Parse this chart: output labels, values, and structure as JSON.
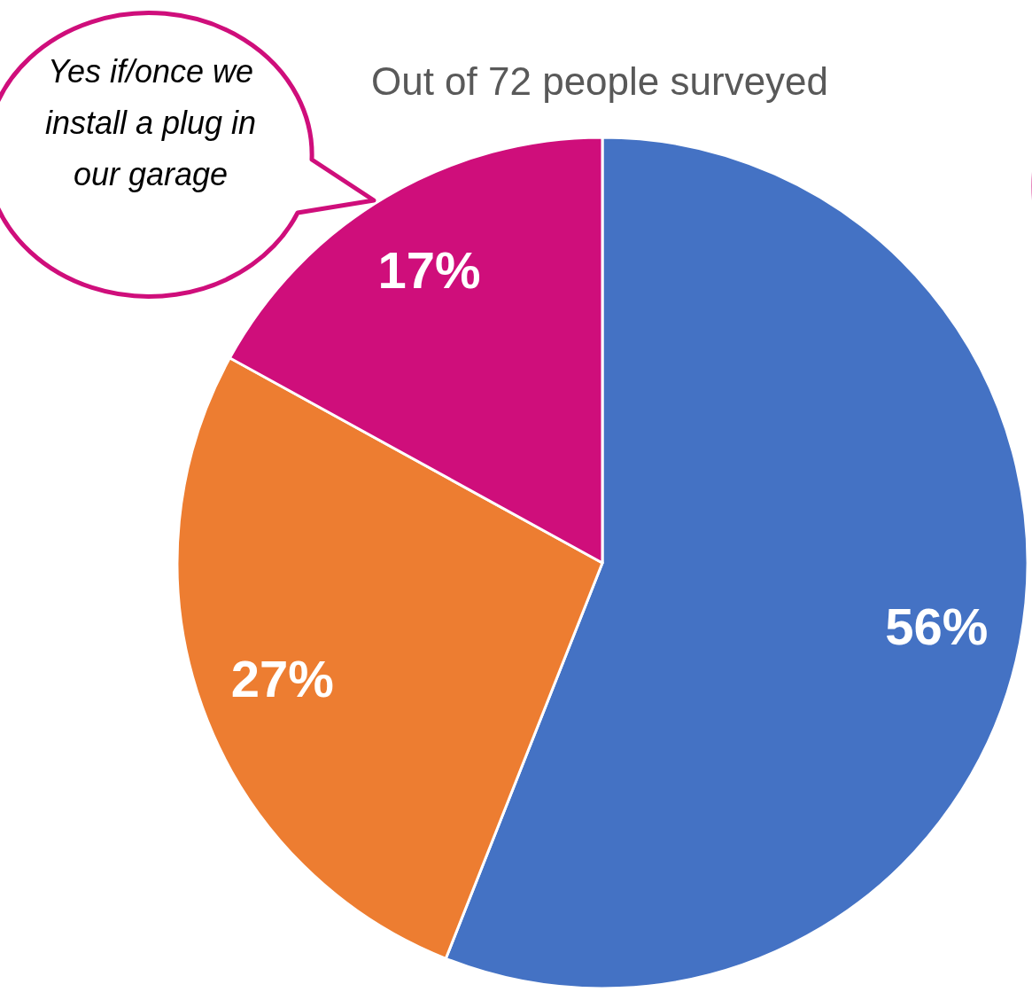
{
  "chart_data": {
    "type": "pie",
    "title": "Out of 72 people surveyed",
    "categories": [
      null,
      null,
      null
    ],
    "values": [
      56,
      27,
      17
    ],
    "colors": [
      "#4472c4",
      "#ed7d31",
      "#cf0e7b"
    ],
    "value_labels": [
      "56%",
      "27%",
      "17%"
    ],
    "annotations": [
      "Yes if/once we install a plug in our garage"
    ]
  }
}
